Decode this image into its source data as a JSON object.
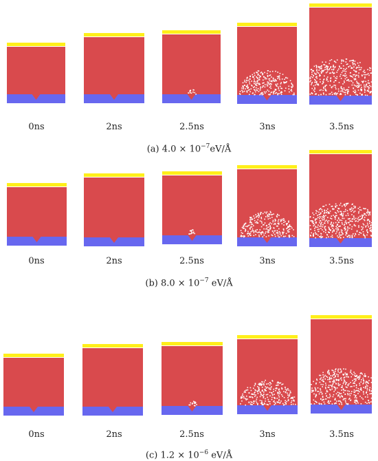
{
  "colors": {
    "electrode_top": "#ffef1a",
    "matrix": "#d94a4d",
    "electrode_bottom": "#6767ef",
    "void": "#ffffff"
  },
  "panels": [
    {
      "caption_label": "(a) 4.0 × 10",
      "caption_exp": "−7",
      "caption_unit": "eV/Å",
      "frames": [
        {
          "time": "0ns",
          "damage": 0
        },
        {
          "time": "2ns",
          "damage": 0
        },
        {
          "time": "2.5ns",
          "damage": 1
        },
        {
          "time": "3ns",
          "damage": 2
        },
        {
          "time": "3.5ns",
          "damage": 3
        }
      ]
    },
    {
      "caption_label": "(b) 8.0 × 10",
      "caption_exp": "−7",
      "caption_unit": " eV/Å",
      "frames": [
        {
          "time": "0ns",
          "damage": 0
        },
        {
          "time": "2ns",
          "damage": 0
        },
        {
          "time": "2.5ns",
          "damage": 1
        },
        {
          "time": "3ns",
          "damage": 2
        },
        {
          "time": "3.5ns",
          "damage": 3
        }
      ]
    },
    {
      "caption_label": "(c) 1.2 × 10",
      "caption_exp": "−6",
      "caption_unit": " eV/Å",
      "frames": [
        {
          "time": "0ns",
          "damage": 0
        },
        {
          "time": "2ns",
          "damage": 0
        },
        {
          "time": "2.5ns",
          "damage": 1
        },
        {
          "time": "3ns",
          "damage": 2
        },
        {
          "time": "3.5ns",
          "damage": 3
        }
      ]
    }
  ]
}
